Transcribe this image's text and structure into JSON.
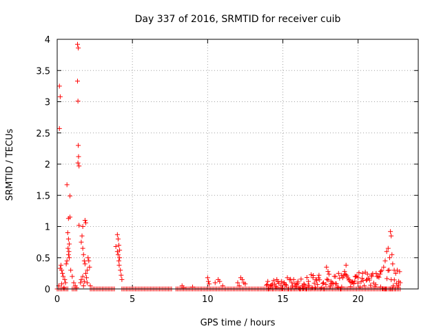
{
  "chart_data": {
    "type": "scatter",
    "title": "Day 337 of 2016, SRMTID for receiver cuib",
    "xlabel": "GPS time / hours",
    "ylabel": "SRMTID / TECUs",
    "xlim": [
      0,
      24
    ],
    "ylim": [
      0,
      4
    ],
    "xticks": [
      0,
      5,
      10,
      15,
      20
    ],
    "xtick_labels": [
      "0",
      "5",
      "10",
      "15",
      "20"
    ],
    "yticks": [
      0,
      0.5,
      1,
      1.5,
      2,
      2.5,
      3,
      3.5,
      4
    ],
    "ytick_labels": [
      "0",
      "0.5",
      "1",
      "1.5",
      "2",
      "2.5",
      "3",
      "3.5",
      "4"
    ],
    "grid": true,
    "marker": "+",
    "series": [
      {
        "name": "SRMTID",
        "color": "#ff0000",
        "points": [
          [
            0.15,
            3.25
          ],
          [
            0.2,
            3.08
          ],
          [
            0.15,
            2.57
          ],
          [
            0.65,
            1.67
          ],
          [
            0.85,
            1.49
          ],
          [
            1.35,
            3.92
          ],
          [
            1.4,
            3.86
          ],
          [
            1.35,
            3.33
          ],
          [
            1.38,
            3.01
          ],
          [
            1.4,
            2.3
          ],
          [
            1.42,
            2.12
          ],
          [
            1.38,
            2.02
          ],
          [
            1.45,
            1.97
          ],
          [
            0.75,
            1.13
          ],
          [
            0.85,
            1.15
          ],
          [
            1.45,
            1.02
          ],
          [
            1.85,
            1.1
          ],
          [
            1.9,
            1.06
          ],
          [
            1.7,
            1.0
          ],
          [
            0.7,
            0.9
          ],
          [
            0.75,
            0.8
          ],
          [
            0.8,
            0.72
          ],
          [
            0.72,
            0.65
          ],
          [
            0.78,
            0.6
          ],
          [
            0.75,
            0.55
          ],
          [
            0.8,
            0.5
          ],
          [
            0.2,
            0.33
          ],
          [
            0.25,
            0.38
          ],
          [
            0.3,
            0.3
          ],
          [
            0.35,
            0.25
          ],
          [
            0.4,
            0.2
          ],
          [
            0.5,
            0.15
          ],
          [
            0.55,
            0.1
          ],
          [
            0.1,
            0.05
          ],
          [
            0.3,
            0.08
          ],
          [
            0.45,
            0.02
          ],
          [
            0.6,
            0.4
          ],
          [
            0.65,
            0.45
          ],
          [
            0.9,
            0.3
          ],
          [
            1.0,
            0.2
          ],
          [
            1.1,
            0.1
          ],
          [
            1.2,
            0.05
          ],
          [
            1.3,
            0.02
          ],
          [
            1.6,
            0.75
          ],
          [
            1.7,
            0.65
          ],
          [
            1.75,
            0.55
          ],
          [
            1.8,
            0.45
          ],
          [
            1.85,
            0.4
          ],
          [
            1.65,
            0.85
          ],
          [
            1.55,
            0.1
          ],
          [
            1.6,
            0.15
          ],
          [
            1.7,
            0.2
          ],
          [
            1.75,
            0.05
          ],
          [
            1.8,
            0.12
          ],
          [
            1.9,
            0.25
          ],
          [
            2.0,
            0.3
          ],
          [
            2.05,
            0.5
          ],
          [
            2.1,
            0.45
          ],
          [
            2.15,
            0.35
          ],
          [
            2.2,
            0.05
          ],
          [
            2.0,
            0.1
          ],
          [
            1.95,
            0.18
          ],
          [
            4.0,
            0.87
          ],
          [
            4.05,
            0.8
          ],
          [
            3.9,
            0.68
          ],
          [
            4.1,
            0.7
          ],
          [
            4.15,
            0.62
          ],
          [
            4.05,
            0.55
          ],
          [
            4.1,
            0.45
          ],
          [
            4.12,
            0.38
          ],
          [
            4.2,
            0.3
          ],
          [
            4.25,
            0.22
          ],
          [
            4.3,
            0.15
          ],
          [
            4.0,
            0.6
          ],
          [
            4.15,
            0.5
          ],
          [
            8.3,
            0.05
          ],
          [
            8.4,
            0.02
          ],
          [
            9.0,
            0.03
          ],
          [
            10.0,
            0.18
          ],
          [
            10.05,
            0.12
          ],
          [
            10.1,
            0.08
          ],
          [
            10.5,
            0.1
          ],
          [
            10.7,
            0.15
          ],
          [
            10.8,
            0.12
          ],
          [
            11.0,
            0.05
          ],
          [
            12.0,
            0.1
          ],
          [
            12.2,
            0.18
          ],
          [
            12.3,
            0.15
          ],
          [
            12.4,
            0.1
          ],
          [
            12.5,
            0.08
          ],
          [
            12.1,
            0.05
          ],
          [
            14.0,
            0.12
          ],
          [
            14.3,
            0.08
          ],
          [
            14.6,
            0.15
          ],
          [
            14.9,
            0.12
          ],
          [
            15.1,
            0.1
          ],
          [
            15.3,
            0.18
          ],
          [
            15.6,
            0.1
          ],
          [
            15.8,
            0.08
          ],
          [
            16.0,
            0.12
          ],
          [
            16.4,
            0.08
          ],
          [
            16.7,
            0.12
          ],
          [
            17.0,
            0.18
          ],
          [
            17.2,
            0.15
          ],
          [
            17.4,
            0.22
          ],
          [
            17.7,
            0.1
          ],
          [
            17.9,
            0.35
          ],
          [
            18.0,
            0.28
          ],
          [
            18.2,
            0.12
          ],
          [
            18.5,
            0.2
          ],
          [
            18.7,
            0.25
          ],
          [
            18.9,
            0.22
          ],
          [
            19.1,
            0.28
          ],
          [
            19.2,
            0.38
          ],
          [
            19.4,
            0.15
          ],
          [
            19.6,
            0.1
          ],
          [
            19.8,
            0.2
          ],
          [
            20.0,
            0.18
          ],
          [
            20.3,
            0.25
          ],
          [
            20.6,
            0.15
          ],
          [
            20.9,
            0.2
          ],
          [
            21.2,
            0.25
          ],
          [
            21.5,
            0.28
          ],
          [
            21.7,
            0.35
          ],
          [
            21.8,
            0.45
          ],
          [
            21.9,
            0.6
          ],
          [
            22.0,
            0.65
          ],
          [
            22.1,
            0.5
          ],
          [
            22.15,
            0.92
          ],
          [
            22.2,
            0.85
          ],
          [
            22.25,
            0.55
          ],
          [
            22.3,
            0.4
          ],
          [
            22.4,
            0.3
          ],
          [
            22.5,
            0.25
          ],
          [
            22.6,
            0.3
          ],
          [
            22.7,
            0.12
          ],
          [
            22.8,
            0.1
          ]
        ]
      }
    ],
    "zero_band": [
      {
        "from": 0.0,
        "to": 0.7
      },
      {
        "from": 1.0,
        "to": 1.3
      },
      {
        "from": 2.2,
        "to": 3.8
      },
      {
        "from": 4.3,
        "to": 7.6
      },
      {
        "from": 7.9,
        "to": 22.8
      }
    ],
    "dense_bands": [
      {
        "from": 13.9,
        "to": 16.6,
        "base": 0.06,
        "spread": 0.1
      },
      {
        "from": 16.6,
        "to": 19.5,
        "base": 0.1,
        "spread": 0.15
      },
      {
        "from": 19.5,
        "to": 21.5,
        "base": 0.15,
        "spread": 0.12
      },
      {
        "from": 21.5,
        "to": 22.8,
        "base": 0.15,
        "spread": 0.22
      }
    ]
  }
}
